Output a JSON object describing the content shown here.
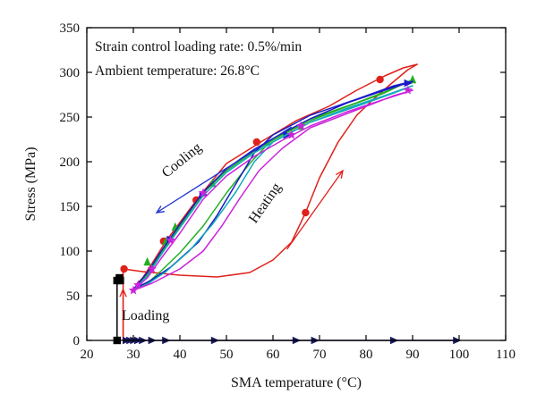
{
  "chart_data": {
    "type": "line",
    "xlabel": "SMA temperature (°C)",
    "ylabel": "Stress (MPa)",
    "xlim": [
      20,
      110
    ],
    "ylim": [
      0,
      350
    ],
    "xticks": [
      20,
      30,
      40,
      50,
      60,
      70,
      80,
      90,
      100,
      110
    ],
    "yticks": [
      0,
      50,
      100,
      150,
      200,
      250,
      300,
      350
    ],
    "grid": false,
    "notes": [
      "Strain control loading rate: 0.5%/min",
      "Ambient temperature: 26.8°C"
    ],
    "annotations": {
      "cooling": {
        "text": "Cooling",
        "color": "#1f2fd0",
        "arrow_from": [
          64,
          239
        ],
        "arrow_to": [
          35,
          143
        ]
      },
      "heating": {
        "text": "Heating",
        "color": "#e0201a",
        "arrow_from": [
          63,
          102
        ],
        "arrow_to": [
          75,
          190
        ]
      },
      "loading": {
        "text": "Loading",
        "color": "#e0201a",
        "arrow_from": [
          27.8,
          5
        ],
        "arrow_to": [
          27.8,
          57
        ]
      }
    },
    "series": [
      {
        "color": "#e0201a",
        "marker": "circle",
        "line": [
          [
            27.8,
            0
          ],
          [
            27.8,
            80
          ],
          [
            32,
            77
          ],
          [
            40,
            73
          ],
          [
            48,
            71
          ],
          [
            55,
            76
          ],
          [
            60,
            90
          ],
          [
            64,
            110
          ],
          [
            67,
            143
          ],
          [
            70,
            182
          ],
          [
            74,
            222
          ],
          [
            78,
            252
          ],
          [
            82,
            272
          ],
          [
            86,
            290
          ],
          [
            89,
            303
          ],
          [
            91,
            309
          ],
          [
            88,
            305
          ],
          [
            84,
            296
          ],
          [
            78,
            280
          ],
          [
            72,
            262
          ],
          [
            65,
            246
          ],
          [
            58,
            224
          ],
          [
            50,
            198
          ],
          [
            44,
            160
          ],
          [
            40,
            132
          ],
          [
            37,
            111
          ],
          [
            34,
            86
          ],
          [
            32,
            70
          ],
          [
            30.5,
            62
          ]
        ],
        "marker_points": [
          [
            28,
            80
          ],
          [
            67,
            143
          ],
          [
            83,
            292
          ],
          [
            56.5,
            222
          ],
          [
            43.5,
            157
          ],
          [
            36.5,
            111
          ]
        ]
      },
      {
        "color": "#22b022",
        "marker": "triangle",
        "line": [
          [
            30,
            57
          ],
          [
            33,
            74
          ],
          [
            36,
            98
          ],
          [
            40,
            128
          ],
          [
            45,
            165
          ],
          [
            50,
            190
          ],
          [
            56,
            212
          ],
          [
            62,
            230
          ],
          [
            68,
            246
          ],
          [
            76,
            262
          ],
          [
            84,
            277
          ],
          [
            90,
            292
          ],
          [
            86,
            282
          ],
          [
            78,
            266
          ],
          [
            68,
            248
          ],
          [
            60,
            226
          ],
          [
            55,
            198
          ],
          [
            50,
            165
          ],
          [
            45,
            128
          ],
          [
            40,
            98
          ],
          [
            36,
            78
          ],
          [
            33,
            64
          ],
          [
            30,
            57
          ]
        ],
        "marker_points": [
          [
            33,
            88
          ],
          [
            37,
            111
          ],
          [
            39,
            127
          ],
          [
            47,
            176
          ],
          [
            66,
            240
          ],
          [
            90,
            292
          ]
        ]
      },
      {
        "color": "#1a1ac8",
        "marker": "right-triangle",
        "line": [
          [
            30,
            57
          ],
          [
            33,
            76
          ],
          [
            36,
            100
          ],
          [
            40,
            130
          ],
          [
            45,
            166
          ],
          [
            50,
            192
          ],
          [
            56,
            214
          ],
          [
            62,
            232
          ],
          [
            68,
            248
          ],
          [
            76,
            266
          ],
          [
            84,
            280
          ],
          [
            90,
            290
          ],
          [
            86,
            285
          ],
          [
            78,
            270
          ],
          [
            68,
            252
          ],
          [
            60,
            230
          ],
          [
            56,
            210
          ],
          [
            52,
            175
          ],
          [
            48,
            140
          ],
          [
            44,
            110
          ],
          [
            38,
            82
          ],
          [
            34,
            68
          ],
          [
            30,
            57
          ]
        ],
        "marker_points": [
          [
            45,
            163
          ],
          [
            63,
            230
          ],
          [
            89,
            288
          ],
          [
            38,
            113
          ]
        ]
      },
      {
        "color": "#11aabb",
        "marker": "none",
        "line": [
          [
            30,
            56
          ],
          [
            33,
            72
          ],
          [
            36,
            96
          ],
          [
            40,
            126
          ],
          [
            45,
            162
          ],
          [
            50,
            188
          ],
          [
            56,
            210
          ],
          [
            62,
            228
          ],
          [
            68,
            244
          ],
          [
            76,
            260
          ],
          [
            84,
            274
          ],
          [
            90,
            285
          ],
          [
            86,
            277
          ],
          [
            78,
            262
          ],
          [
            68,
            244
          ],
          [
            60,
            222
          ],
          [
            56,
            200
          ],
          [
            52,
            166
          ],
          [
            47,
            130
          ],
          [
            42,
            100
          ],
          [
            37,
            77
          ],
          [
            33,
            63
          ],
          [
            30,
            56
          ]
        ],
        "marker_points": []
      },
      {
        "color": "#cc22dd",
        "marker": "star",
        "line": [
          [
            30,
            56
          ],
          [
            33,
            70
          ],
          [
            36,
            92
          ],
          [
            40,
            120
          ],
          [
            45,
            158
          ],
          [
            50,
            184
          ],
          [
            56,
            206
          ],
          [
            62,
            224
          ],
          [
            68,
            240
          ],
          [
            76,
            256
          ],
          [
            84,
            270
          ],
          [
            90,
            280
          ],
          [
            86,
            274
          ],
          [
            78,
            258
          ],
          [
            68,
            238
          ],
          [
            62,
            215
          ],
          [
            57,
            190
          ],
          [
            53,
            160
          ],
          [
            49,
            128
          ],
          [
            45,
            100
          ],
          [
            40,
            80
          ],
          [
            34,
            64
          ],
          [
            30,
            56
          ]
        ],
        "marker_points": [
          [
            30,
            56
          ],
          [
            31,
            62
          ],
          [
            34,
            80
          ],
          [
            38,
            112
          ],
          [
            45,
            165
          ],
          [
            64,
            230
          ],
          [
            66,
            240
          ],
          [
            89,
            280
          ]
        ]
      },
      {
        "color": "#1a1a60",
        "marker": "right-triangle",
        "line": [
          [
            28,
            0
          ],
          [
            100,
            0
          ]
        ],
        "marker_points": [
          [
            28.5,
            0
          ],
          [
            29.3,
            0
          ],
          [
            30.1,
            0
          ],
          [
            31,
            0
          ],
          [
            32,
            0
          ],
          [
            34,
            0
          ],
          [
            37,
            0
          ],
          [
            47.5,
            0
          ],
          [
            65,
            0
          ],
          [
            69,
            0
          ],
          [
            86,
            0
          ],
          [
            99.5,
            0
          ]
        ]
      },
      {
        "color": "#000000",
        "marker": "square",
        "line": [
          [
            26.5,
            0
          ],
          [
            26.5,
            68
          ],
          [
            27,
            70
          ],
          [
            27.3,
            66
          ]
        ],
        "marker_points": [
          [
            26.5,
            0
          ],
          [
            26.5,
            67
          ],
          [
            27.2,
            67
          ],
          [
            27,
            70
          ]
        ]
      }
    ]
  }
}
